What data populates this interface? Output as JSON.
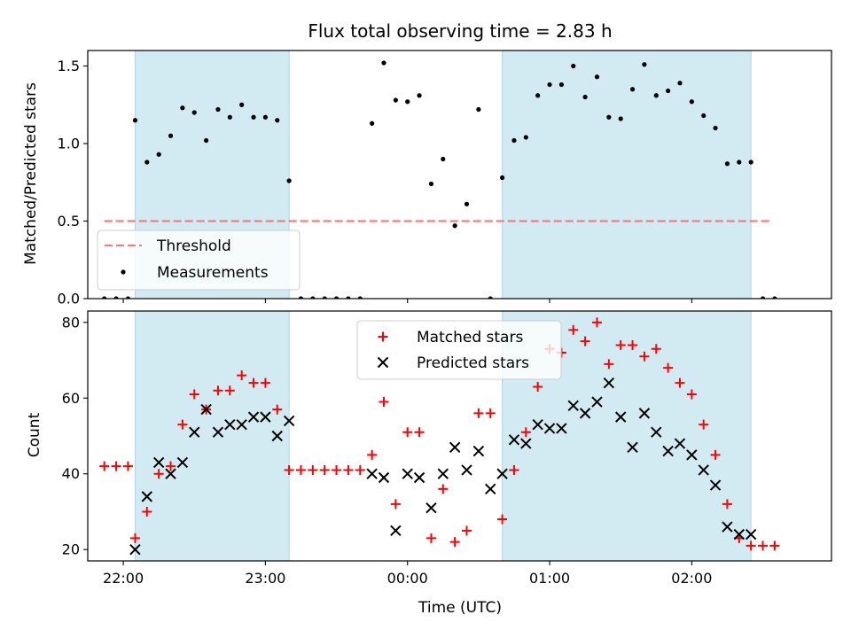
{
  "colors": {
    "shade": "#add8e6",
    "threshold": "#f08080",
    "measurement": "#000000",
    "matched": "#ff0000",
    "predicted": "#000000"
  },
  "chart_data": [
    {
      "type": "scatter",
      "title": "Flux total observing time = 2.83 h",
      "xlabel": "",
      "ylabel": "Matched/Predicted stars",
      "xlim": [
        "21:45",
        "02:59"
      ],
      "ylim": [
        0,
        1.6
      ],
      "yticks": [
        0.0,
        0.5,
        1.0,
        1.5
      ],
      "ytick_labels": [
        "0.0",
        "0.5",
        "1.0",
        "1.5"
      ],
      "shaded_regions": [
        [
          "22:05",
          "23:10"
        ],
        [
          "00:40",
          "02:25"
        ]
      ],
      "threshold": {
        "label": "Threshold",
        "y": 0.5,
        "x_range": [
          "21:52",
          "02:33"
        ]
      },
      "legend": {
        "placement": "lower-left",
        "entries": [
          "Threshold",
          "Measurements"
        ]
      },
      "series": [
        {
          "name": "Measurements",
          "x": [
            "21:52",
            "21:57",
            "22:02",
            "22:05",
            "22:10",
            "22:15",
            "22:20",
            "22:25",
            "22:30",
            "22:35",
            "22:40",
            "22:45",
            "22:50",
            "22:55",
            "23:00",
            "23:05",
            "23:10",
            "23:15",
            "23:20",
            "23:25",
            "23:30",
            "23:35",
            "23:40",
            "23:45",
            "23:50",
            "23:55",
            "00:00",
            "00:05",
            "00:10",
            "00:15",
            "00:20",
            "00:25",
            "00:30",
            "00:35",
            "00:40",
            "00:45",
            "00:50",
            "00:55",
            "01:00",
            "01:05",
            "01:10",
            "01:15",
            "01:20",
            "01:25",
            "01:30",
            "01:35",
            "01:40",
            "01:45",
            "01:50",
            "01:55",
            "02:00",
            "02:05",
            "02:10",
            "02:15",
            "02:20",
            "02:25",
            "02:30",
            "02:35"
          ],
          "y": [
            0,
            0,
            0,
            1.15,
            0.88,
            0.93,
            1.05,
            1.23,
            1.2,
            1.02,
            1.22,
            1.17,
            1.25,
            1.17,
            1.17,
            1.15,
            0.76,
            0,
            0,
            0,
            0,
            0,
            0,
            1.13,
            1.52,
            1.28,
            1.27,
            1.31,
            0.74,
            0.9,
            0.47,
            0.61,
            1.22,
            0,
            0.78,
            1.02,
            1.04,
            1.31,
            1.38,
            1.38,
            1.5,
            1.3,
            1.43,
            1.17,
            1.16,
            1.35,
            1.51,
            1.31,
            1.34,
            1.39,
            1.27,
            1.18,
            1.1,
            0.87,
            0.88,
            0.88,
            0,
            0
          ]
        }
      ]
    },
    {
      "type": "scatter",
      "title": "",
      "xlabel": "Time (UTC)",
      "ylabel": "Count",
      "xlim": [
        "21:45",
        "02:59"
      ],
      "ylim": [
        17,
        83
      ],
      "yticks": [
        20,
        40,
        60,
        80
      ],
      "ytick_labels": [
        "20",
        "40",
        "60",
        "80"
      ],
      "xticks": [
        "22:00",
        "23:00",
        "00:00",
        "01:00",
        "02:00"
      ],
      "shaded_regions": [
        [
          "22:05",
          "23:10"
        ],
        [
          "00:40",
          "02:25"
        ]
      ],
      "legend": {
        "placement": "top-center",
        "entries": [
          "Matched stars",
          "Predicted stars"
        ]
      },
      "series": [
        {
          "name": "Matched stars",
          "marker": "+",
          "x": [
            "21:52",
            "21:57",
            "22:02",
            "22:05",
            "22:10",
            "22:15",
            "22:20",
            "22:25",
            "22:30",
            "22:35",
            "22:40",
            "22:45",
            "22:50",
            "22:55",
            "23:00",
            "23:05",
            "23:10",
            "23:15",
            "23:20",
            "23:25",
            "23:30",
            "23:35",
            "23:40",
            "23:45",
            "23:50",
            "23:55",
            "00:00",
            "00:05",
            "00:10",
            "00:15",
            "00:20",
            "00:25",
            "00:30",
            "00:35",
            "00:40",
            "00:45",
            "00:50",
            "00:55",
            "01:00",
            "01:05",
            "01:10",
            "01:15",
            "01:20",
            "01:25",
            "01:30",
            "01:35",
            "01:40",
            "01:45",
            "01:50",
            "01:55",
            "02:00",
            "02:05",
            "02:10",
            "02:15",
            "02:20",
            "02:25",
            "02:30",
            "02:35"
          ],
          "y": [
            42,
            42,
            42,
            23,
            30,
            40,
            42,
            53,
            61,
            57,
            62,
            62,
            66,
            64,
            64,
            57,
            41,
            41,
            41,
            41,
            41,
            41,
            41,
            45,
            59,
            32,
            51,
            51,
            23,
            36,
            22,
            25,
            56,
            56,
            28,
            41,
            51,
            63,
            73,
            72,
            78,
            75,
            80,
            69,
            74,
            74,
            71,
            73,
            68,
            64,
            61,
            53,
            45,
            32,
            23,
            21,
            21,
            21
          ]
        },
        {
          "name": "Predicted stars",
          "marker": "x",
          "x": [
            "22:05",
            "22:10",
            "22:15",
            "22:20",
            "22:25",
            "22:30",
            "22:35",
            "22:40",
            "22:45",
            "22:50",
            "22:55",
            "23:00",
            "23:05",
            "23:10",
            "23:45",
            "23:50",
            "23:55",
            "00:00",
            "00:05",
            "00:10",
            "00:15",
            "00:20",
            "00:25",
            "00:30",
            "00:35",
            "00:40",
            "00:45",
            "00:50",
            "00:55",
            "01:00",
            "01:05",
            "01:10",
            "01:15",
            "01:20",
            "01:25",
            "01:30",
            "01:35",
            "01:40",
            "01:45",
            "01:50",
            "01:55",
            "02:00",
            "02:05",
            "02:10",
            "02:15",
            "02:20",
            "02:25"
          ],
          "y": [
            20,
            34,
            43,
            40,
            43,
            51,
            57,
            51,
            53,
            53,
            55,
            55,
            50,
            54,
            40,
            39,
            25,
            40,
            39,
            31,
            40,
            47,
            41,
            46,
            36,
            40,
            49,
            48,
            53,
            52,
            52,
            58,
            56,
            59,
            64,
            55,
            47,
            56,
            51,
            46,
            48,
            45,
            41,
            37,
            26,
            24,
            24
          ]
        }
      ]
    }
  ]
}
